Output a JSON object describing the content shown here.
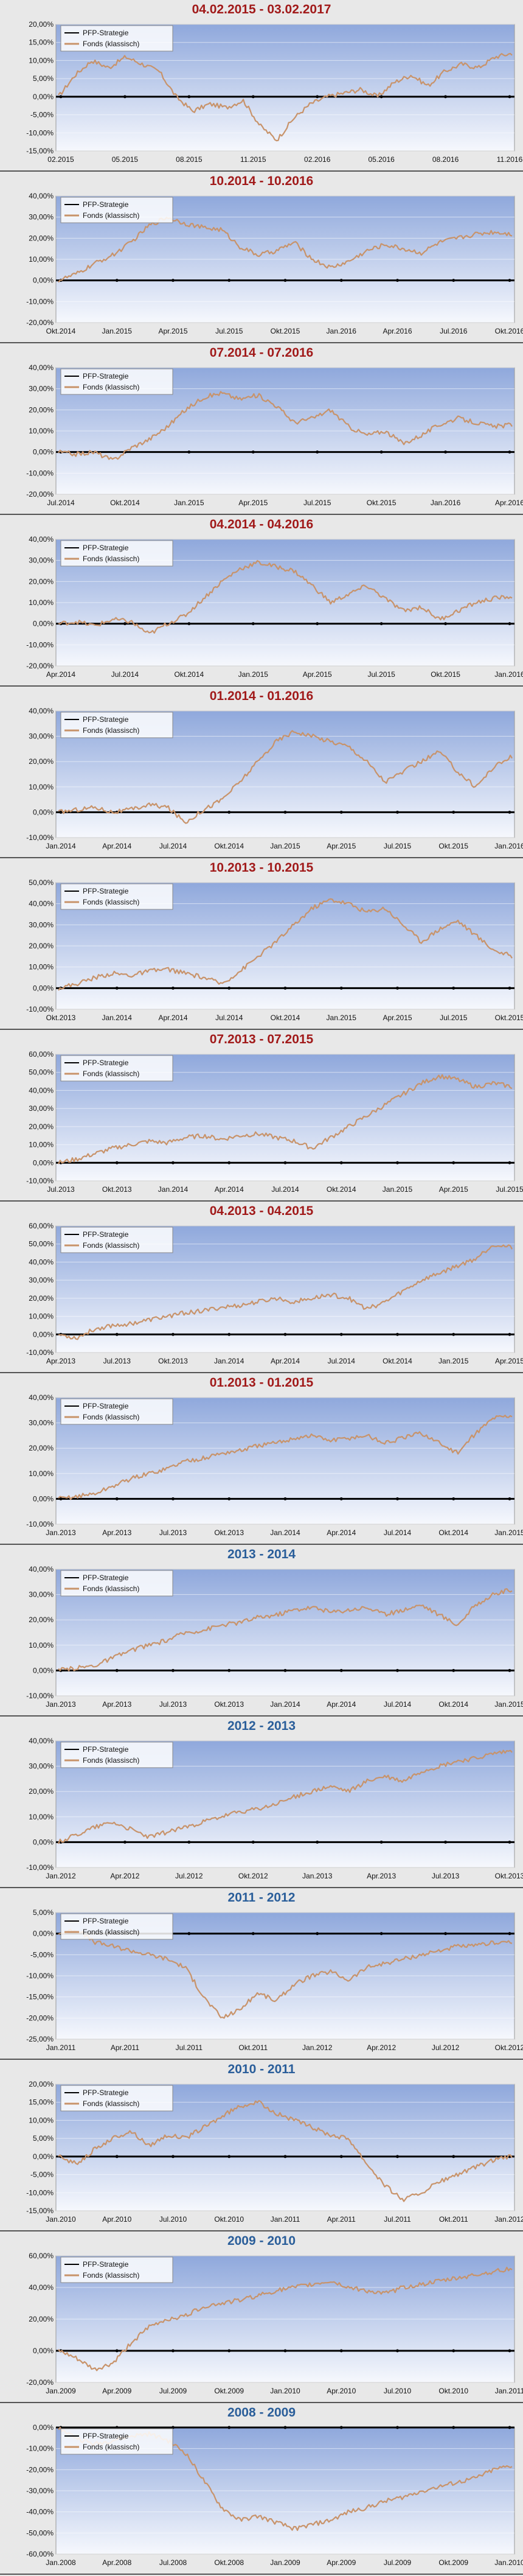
{
  "legend": {
    "strategy": "PFP-Strategie",
    "fund": "Fonds (klassisch)"
  },
  "colors": {
    "title_recent": "#a11a1a",
    "title_year": "#2a5e9a",
    "fund_line": "#c8936a",
    "strategy_line": "#000000",
    "plot_top": "#8fa8dc",
    "plot_bottom": "#f6f8fd"
  },
  "chart_data": [
    {
      "type": "line",
      "title": "04.02.2015 - 03.02.2017",
      "title_color": "title_recent",
      "legend_position": "top-left",
      "ylim": [
        -15,
        20
      ],
      "yticks": [
        "-15,00%",
        "-10,00%",
        "-5,00%",
        "0,00%",
        "5,00%",
        "10,00%",
        "15,00%",
        "20,00%"
      ],
      "xticks": [
        "02.2015",
        "05.2015",
        "08.2015",
        "11.2015",
        "02.2016",
        "05.2016",
        "08.2016",
        "11.2016"
      ],
      "series": [
        {
          "name": "PFP-Strategie",
          "values": [
            0,
            0
          ]
        },
        {
          "name": "Fonds (klassisch)",
          "values": [
            0,
            6,
            10,
            8,
            11,
            9,
            7,
            0,
            -4,
            -2,
            -3,
            -1,
            -8,
            -12,
            -6,
            -2,
            0,
            1,
            2,
            0,
            4,
            6,
            3,
            7,
            9,
            8,
            11,
            12
          ]
        }
      ]
    },
    {
      "type": "line",
      "title": "10.2014 - 10.2016",
      "title_color": "title_recent",
      "legend_position": "top-left",
      "ylim": [
        -20,
        40
      ],
      "yticks": [
        "-20,00%",
        "-10,00%",
        "0,00%",
        "10,00%",
        "20,00%",
        "30,00%",
        "40,00%"
      ],
      "xticks": [
        "Okt.2014",
        "Jan.2015",
        "Apr.2015",
        "Jul.2015",
        "Okt.2015",
        "Jan.2016",
        "Apr.2016",
        "Jul.2016",
        "Okt.2016"
      ],
      "series": [
        {
          "name": "PFP-Strategie",
          "values": [
            0,
            0
          ]
        },
        {
          "name": "Fonds (klassisch)",
          "values": [
            0,
            3,
            8,
            12,
            18,
            26,
            30,
            27,
            25,
            24,
            16,
            12,
            14,
            18,
            10,
            6,
            9,
            14,
            17,
            15,
            13,
            18,
            20,
            22,
            23,
            22
          ]
        }
      ]
    },
    {
      "type": "line",
      "title": "07.2014 - 07.2016",
      "title_color": "title_recent",
      "legend_position": "top-left",
      "ylim": [
        -20,
        40
      ],
      "yticks": [
        "-20,00%",
        "-10,00%",
        "0,00%",
        "10,00%",
        "20,00%",
        "30,00%",
        "40,00%"
      ],
      "xticks": [
        "Jul.2014",
        "Okt.2014",
        "Jan.2015",
        "Apr.2015",
        "Jul.2015",
        "Okt.2015",
        "Jan.2016",
        "Apr.2016"
      ],
      "series": [
        {
          "name": "PFP-Strategie",
          "values": [
            0,
            0
          ]
        },
        {
          "name": "Fonds (klassisch)",
          "values": [
            0,
            -1,
            0,
            -4,
            2,
            6,
            12,
            20,
            26,
            28,
            25,
            27,
            22,
            14,
            16,
            20,
            12,
            8,
            10,
            4,
            8,
            13,
            16,
            14,
            12,
            13
          ]
        }
      ]
    },
    {
      "type": "line",
      "title": "04.2014 - 04.2016",
      "title_color": "title_recent",
      "legend_position": "top-left",
      "ylim": [
        -20,
        40
      ],
      "yticks": [
        "-20,00%",
        "-10,00%",
        "0,00%",
        "10,00%",
        "20,00%",
        "30,00%",
        "40,00%"
      ],
      "xticks": [
        "Apr.2014",
        "Jul.2014",
        "Okt.2014",
        "Jan.2015",
        "Apr.2015",
        "Jul.2015",
        "Okt.2015",
        "Jan.2016"
      ],
      "series": [
        {
          "name": "PFP-Strategie",
          "values": [
            0,
            0
          ]
        },
        {
          "name": "Fonds (klassisch)",
          "values": [
            0,
            1,
            -1,
            2,
            1,
            -5,
            0,
            4,
            12,
            20,
            26,
            29,
            27,
            25,
            18,
            10,
            14,
            18,
            12,
            6,
            8,
            2,
            6,
            10,
            12,
            13
          ]
        }
      ]
    },
    {
      "type": "line",
      "title": "01.2014 - 01.2016",
      "title_color": "title_recent",
      "legend_position": "top-left",
      "ylim": [
        -10,
        40
      ],
      "yticks": [
        "-10,00%",
        "0,00%",
        "10,00%",
        "20,00%",
        "30,00%",
        "40,00%"
      ],
      "xticks": [
        "Jan.2014",
        "Apr.2014",
        "Jul.2014",
        "Okt.2014",
        "Jan.2015",
        "Apr.2015",
        "Jul.2015",
        "Okt.2015",
        "Jan.2016"
      ],
      "series": [
        {
          "name": "PFP-Strategie",
          "values": [
            0,
            0
          ]
        },
        {
          "name": "Fonds (klassisch)",
          "values": [
            0,
            1,
            2,
            0,
            1,
            3,
            2,
            -4,
            1,
            5,
            12,
            20,
            28,
            32,
            30,
            28,
            26,
            20,
            12,
            16,
            20,
            24,
            16,
            10,
            18,
            22
          ]
        }
      ]
    },
    {
      "type": "line",
      "title": "10.2013 - 10.2015",
      "title_color": "title_recent",
      "legend_position": "top-left",
      "ylim": [
        -10,
        50
      ],
      "yticks": [
        "-10,00%",
        "0,00%",
        "10,00%",
        "20,00%",
        "30,00%",
        "40,00%",
        "50,00%"
      ],
      "xticks": [
        "Okt.2013",
        "Jan.2014",
        "Apr.2014",
        "Jul.2014",
        "Okt.2014",
        "Jan.2015",
        "Apr.2015",
        "Jul.2015",
        "Okt.2015"
      ],
      "series": [
        {
          "name": "PFP-Strategie",
          "values": [
            0,
            0
          ]
        },
        {
          "name": "Fonds (klassisch)",
          "values": [
            0,
            2,
            5,
            7,
            6,
            8,
            9,
            7,
            5,
            2,
            8,
            15,
            22,
            30,
            38,
            42,
            40,
            36,
            38,
            30,
            22,
            28,
            32,
            25,
            18,
            15
          ]
        }
      ]
    },
    {
      "type": "line",
      "title": "07.2013 - 07.2015",
      "title_color": "title_recent",
      "legend_position": "top-left",
      "ylim": [
        -10,
        60
      ],
      "yticks": [
        "-10,00%",
        "0,00%",
        "10,00%",
        "20,00%",
        "30,00%",
        "40,00%",
        "50,00%",
        "60,00%"
      ],
      "xticks": [
        "Jul.2013",
        "Okt.2013",
        "Jan.2014",
        "Apr.2014",
        "Jul.2014",
        "Okt.2014",
        "Jan.2015",
        "Apr.2015",
        "Jul.2015"
      ],
      "series": [
        {
          "name": "PFP-Strategie",
          "values": [
            0,
            0
          ]
        },
        {
          "name": "Fonds (klassisch)",
          "values": [
            0,
            2,
            5,
            8,
            10,
            12,
            11,
            14,
            15,
            13,
            15,
            16,
            14,
            12,
            8,
            14,
            20,
            26,
            32,
            38,
            44,
            48,
            46,
            42,
            44,
            42
          ]
        }
      ]
    },
    {
      "type": "line",
      "title": "04.2013 - 04.2015",
      "title_color": "title_recent",
      "legend_position": "top-left",
      "ylim": [
        -10,
        60
      ],
      "yticks": [
        "-10,00%",
        "0,00%",
        "10,00%",
        "20,00%",
        "30,00%",
        "40,00%",
        "50,00%",
        "60,00%"
      ],
      "xticks": [
        "Apr.2013",
        "Jul.2013",
        "Okt.2013",
        "Jan.2014",
        "Apr.2014",
        "Jul.2014",
        "Okt.2014",
        "Jan.2015",
        "Apr.2015"
      ],
      "series": [
        {
          "name": "PFP-Strategie",
          "values": [
            0,
            0
          ]
        },
        {
          "name": "Fonds (klassisch)",
          "values": [
            0,
            -2,
            3,
            5,
            6,
            8,
            10,
            12,
            13,
            15,
            16,
            18,
            20,
            18,
            20,
            22,
            20,
            14,
            18,
            24,
            30,
            34,
            38,
            42,
            50,
            48
          ]
        }
      ]
    },
    {
      "type": "line",
      "title": "01.2013 - 01.2015",
      "title_color": "title_recent",
      "legend_position": "top-left",
      "ylim": [
        -10,
        40
      ],
      "yticks": [
        "-10,00%",
        "0,00%",
        "10,00%",
        "20,00%",
        "30,00%",
        "40,00%"
      ],
      "xticks": [
        "Jan.2013",
        "Apr.2013",
        "Jul.2013",
        "Okt.2013",
        "Jan.2014",
        "Apr.2014",
        "Jul.2014",
        "Okt.2014",
        "Jan.2015"
      ],
      "series": [
        {
          "name": "PFP-Strategie",
          "values": [
            0,
            0
          ]
        },
        {
          "name": "Fonds (klassisch)",
          "values": [
            0,
            1,
            2,
            5,
            8,
            10,
            12,
            15,
            16,
            18,
            19,
            21,
            22,
            24,
            25,
            23,
            24,
            25,
            22,
            24,
            26,
            22,
            18,
            26,
            32,
            33
          ]
        }
      ]
    },
    {
      "type": "line",
      "title": "2013 - 2014",
      "title_color": "title_year",
      "legend_position": "top-left",
      "ylim": [
        -10,
        40
      ],
      "yticks": [
        "-10,00%",
        "0,00%",
        "10,00%",
        "20,00%",
        "30,00%",
        "40,00%"
      ],
      "xticks": [
        "Jan.2013",
        "Apr.2013",
        "Jul.2013",
        "Okt.2013",
        "Jan.2014",
        "Apr.2014",
        "Jul.2014",
        "Okt.2014",
        "Jan.2015"
      ],
      "series": [
        {
          "name": "PFP-Strategie",
          "values": [
            0,
            0
          ]
        },
        {
          "name": "Fonds (klassisch)",
          "values": [
            0,
            1,
            2,
            5,
            8,
            10,
            12,
            15,
            16,
            18,
            19,
            21,
            22,
            24,
            25,
            23,
            24,
            25,
            22,
            24,
            26,
            22,
            18,
            26,
            30,
            32
          ]
        }
      ]
    },
    {
      "type": "line",
      "title": "2012 - 2013",
      "title_color": "title_year",
      "legend_position": "top-left",
      "ylim": [
        -10,
        40
      ],
      "yticks": [
        "-10,00%",
        "0,00%",
        "10,00%",
        "20,00%",
        "30,00%",
        "40,00%"
      ],
      "xticks": [
        "Jan.2012",
        "Apr.2012",
        "Jul.2012",
        "Okt.2012",
        "Jan.2013",
        "Apr.2013",
        "Jul.2013",
        "Okt.2013"
      ],
      "series": [
        {
          "name": "PFP-Strategie",
          "values": [
            0,
            0
          ]
        },
        {
          "name": "Fonds (klassisch)",
          "values": [
            0,
            3,
            6,
            8,
            5,
            2,
            4,
            6,
            8,
            10,
            12,
            13,
            15,
            18,
            20,
            22,
            20,
            24,
            26,
            24,
            28,
            30,
            32,
            33,
            35,
            36
          ]
        }
      ]
    },
    {
      "type": "line",
      "title": "2011 - 2012",
      "title_color": "title_year",
      "legend_position": "top-left",
      "ylim": [
        -25,
        5
      ],
      "yticks": [
        "-25,00%",
        "-20,00%",
        "-15,00%",
        "-10,00%",
        "-5,00%",
        "0,00%",
        "5,00%"
      ],
      "xticks": [
        "Jan.2011",
        "Apr.2011",
        "Jul.2011",
        "Okt.2011",
        "Jan.2012",
        "Apr.2012",
        "Jul.2012",
        "Okt.2012"
      ],
      "series": [
        {
          "name": "PFP-Strategie",
          "values": [
            0,
            0
          ]
        },
        {
          "name": "Fonds (klassisch)",
          "values": [
            0,
            1,
            -2,
            -3,
            -4,
            -5,
            -6,
            -8,
            -15,
            -20,
            -18,
            -14,
            -16,
            -12,
            -10,
            -9,
            -11,
            -8,
            -7,
            -6,
            -5,
            -4,
            -3,
            -3,
            -2,
            -2
          ]
        }
      ]
    },
    {
      "type": "line",
      "title": "2010 - 2011",
      "title_color": "title_year",
      "legend_position": "top-left",
      "ylim": [
        -15,
        20
      ],
      "yticks": [
        "-15,00%",
        "-10,00%",
        "-5,00%",
        "0,00%",
        "5,00%",
        "10,00%",
        "15,00%",
        "20,00%"
      ],
      "xticks": [
        "Jan.2010",
        "Apr.2010",
        "Jul.2010",
        "Okt.2010",
        "Jan.2011",
        "Apr.2011",
        "Jul.2011",
        "Okt.2011",
        "Jan.2012"
      ],
      "series": [
        {
          "name": "PFP-Strategie",
          "values": [
            0,
            0
          ]
        },
        {
          "name": "Fonds (klassisch)",
          "values": [
            0,
            -2,
            2,
            5,
            7,
            3,
            6,
            5,
            8,
            11,
            14,
            15,
            12,
            10,
            8,
            6,
            5,
            -2,
            -8,
            -12,
            -10,
            -7,
            -5,
            -3,
            -1,
            0
          ]
        }
      ]
    },
    {
      "type": "line",
      "title": "2009 - 2010",
      "title_color": "title_year",
      "legend_position": "top-left",
      "ylim": [
        -20,
        60
      ],
      "yticks": [
        "-20,00%",
        "0,00%",
        "20,00%",
        "40,00%",
        "60,00%"
      ],
      "xticks": [
        "Jan.2009",
        "Apr.2009",
        "Jul.2009",
        "Okt.2009",
        "Jan.2010",
        "Apr.2010",
        "Jul.2010",
        "Okt.2010",
        "Jan.2011"
      ],
      "series": [
        {
          "name": "PFP-Strategie",
          "values": [
            0,
            0
          ]
        },
        {
          "name": "Fonds (klassisch)",
          "values": [
            0,
            -5,
            -12,
            -8,
            5,
            15,
            20,
            22,
            28,
            30,
            32,
            35,
            38,
            40,
            42,
            44,
            40,
            38,
            36,
            40,
            42,
            44,
            46,
            48,
            50,
            52
          ]
        }
      ]
    },
    {
      "type": "line",
      "title": "2008 - 2009",
      "title_color": "title_year",
      "legend_position": "top-left",
      "ylim": [
        -60,
        0
      ],
      "yticks": [
        "-60,00%",
        "-50,00%",
        "-40,00%",
        "-30,00%",
        "-20,00%",
        "-10,00%",
        "0,00%"
      ],
      "xticks": [
        "Jan.2008",
        "Apr.2008",
        "Jul.2008",
        "Okt.2008",
        "Jan.2009",
        "Apr.2009",
        "Jul.2009",
        "Okt.2009",
        "Jan.2010"
      ],
      "series": [
        {
          "name": "PFP-Strategie",
          "values": [
            0,
            0
          ]
        },
        {
          "name": "Fonds (klassisch)",
          "values": [
            0,
            -5,
            -8,
            -6,
            -4,
            -3,
            -6,
            -12,
            -25,
            -38,
            -44,
            -42,
            -45,
            -48,
            -46,
            -44,
            -40,
            -38,
            -35,
            -33,
            -30,
            -28,
            -26,
            -24,
            -20,
            -18
          ]
        }
      ]
    }
  ]
}
